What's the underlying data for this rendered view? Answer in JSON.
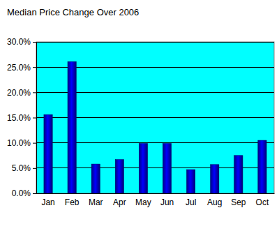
{
  "chart_data": {
    "type": "bar",
    "title": "Median Price Change Over 2006",
    "categories": [
      "Jan",
      "Feb",
      "Mar",
      "Apr",
      "May",
      "Jun",
      "Jul",
      "Aug",
      "Sep",
      "Oct"
    ],
    "values": [
      15.6,
      26.1,
      5.8,
      6.7,
      9.9,
      9.9,
      4.7,
      5.7,
      7.5,
      10.5
    ],
    "color": "#0000cc",
    "ylim": [
      0,
      30
    ],
    "yticks": [
      {
        "value": 0,
        "label": "0.0%"
      },
      {
        "value": 5,
        "label": "5.0%"
      },
      {
        "value": 10,
        "label": "10.0%"
      },
      {
        "value": 15,
        "label": "15.0%"
      },
      {
        "value": 20,
        "label": "20.0%"
      },
      {
        "value": 25,
        "label": "25.0%"
      },
      {
        "value": 30,
        "label": "30.0%"
      }
    ],
    "grid": true
  }
}
